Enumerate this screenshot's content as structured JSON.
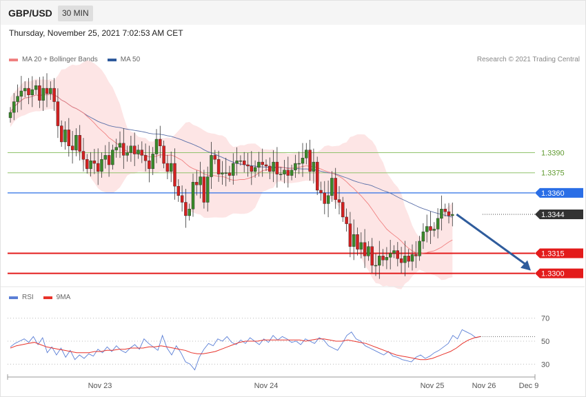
{
  "header": {
    "pair": "GBP/USD",
    "timeframe": "30 MIN",
    "datetime": "Thursday, November 25, 2021 7:02:53 AM CET",
    "copyright": "Research © 2021 Trading Central"
  },
  "legend_main": [
    {
      "label": "MA 20 + Bollinger Bands",
      "color": "#f08080"
    },
    {
      "label": "MA 50",
      "color": "#2e5a9c"
    }
  ],
  "legend_rsi": [
    {
      "label": "RSI",
      "color": "#5b7fd6"
    },
    {
      "label": "9MA",
      "color": "#e8322a"
    }
  ],
  "chart_data": {
    "type": "candlestick",
    "price_range": [
      1.3288,
      1.3455
    ],
    "levels": [
      {
        "value": 1.339,
        "label": "1.3390",
        "kind": "target",
        "color": "#8fc26a",
        "text_color": "#5f9a2f"
      },
      {
        "value": 1.3375,
        "label": "1.3375",
        "kind": "target",
        "color": "#8fc26a",
        "text_color": "#5f9a2f"
      },
      {
        "value": 1.336,
        "label": "1.3360",
        "kind": "pivot",
        "color": "#2a6ee6"
      },
      {
        "value": 1.3344,
        "label": "1.3344",
        "kind": "last",
        "color": "#333333"
      },
      {
        "value": 1.3315,
        "label": "1.3315",
        "kind": "support",
        "color": "#e31b1b"
      },
      {
        "value": 1.33,
        "label": "1.3300",
        "kind": "support",
        "color": "#e31b1b"
      }
    ],
    "closes": [
      1.342,
      1.3428,
      1.3432,
      1.3436,
      1.3438,
      1.3433,
      1.3437,
      1.344,
      1.3429,
      1.3438,
      1.3434,
      1.3438,
      1.3428,
      1.341,
      1.3398,
      1.3407,
      1.3395,
      1.3392,
      1.3403,
      1.3391,
      1.3385,
      1.3378,
      1.3384,
      1.3382,
      1.3376,
      1.3385,
      1.3388,
      1.3381,
      1.3392,
      1.3394,
      1.3397,
      1.3388,
      1.339,
      1.3395,
      1.3389,
      1.3392,
      1.3388,
      1.3384,
      1.3378,
      1.3389,
      1.34,
      1.3395,
      1.3382,
      1.3376,
      1.3382,
      1.3365,
      1.3358,
      1.3353,
      1.3343,
      1.3348,
      1.3368,
      1.3366,
      1.3372,
      1.3353,
      1.3372,
      1.3388,
      1.3385,
      1.3374,
      1.3375,
      1.3375,
      1.3373,
      1.3382,
      1.3384,
      1.3384,
      1.3381,
      1.338,
      1.3376,
      1.3379,
      1.3383,
      1.3381,
      1.338,
      1.3376,
      1.3383,
      1.3374,
      1.3374,
      1.3377,
      1.3373,
      1.3377,
      1.3382,
      1.3382,
      1.3386,
      1.3392,
      1.3376,
      1.3383,
      1.3362,
      1.336,
      1.3352,
      1.3358,
      1.3371,
      1.3355,
      1.3353,
      1.3342,
      1.3337,
      1.332,
      1.3329,
      1.3318,
      1.3323,
      1.3313,
      1.332,
      1.3306,
      1.3306,
      1.3313,
      1.331,
      1.3312,
      1.3315,
      1.3317,
      1.3311,
      1.3308,
      1.3313,
      1.3309,
      1.3314,
      1.3313,
      1.3324,
      1.3331,
      1.3335,
      1.3332,
      1.3333,
      1.3341,
      1.3348,
      1.3346,
      1.3343,
      1.3344
    ],
    "rsi": {
      "range": [
        20,
        80
      ],
      "levels": [
        70,
        50,
        30
      ],
      "rsi_values": [
        45,
        48,
        50,
        52,
        49,
        54,
        47,
        53,
        40,
        45,
        38,
        44,
        36,
        42,
        34,
        38,
        35,
        39,
        37,
        43,
        40,
        45,
        41,
        46,
        42,
        40,
        44,
        47,
        43,
        52,
        48,
        45,
        42,
        55,
        44,
        38,
        46,
        40,
        32,
        30,
        25,
        36,
        43,
        48,
        46,
        52,
        50,
        54,
        49,
        47,
        51,
        48,
        53,
        50,
        47,
        52,
        49,
        55,
        51,
        54,
        52,
        49,
        50,
        47,
        52,
        50,
        48,
        53,
        51,
        46,
        44,
        42,
        48,
        55,
        58,
        52,
        50,
        46,
        44,
        42,
        40,
        38,
        41,
        37,
        36,
        34,
        33,
        32,
        36,
        38,
        35,
        37,
        40,
        42,
        45,
        48,
        55,
        52,
        60,
        58,
        56,
        53,
        54
      ],
      "ma_values": [
        44,
        46,
        47,
        48,
        49,
        47,
        45,
        44,
        43,
        42,
        41,
        40,
        40,
        40,
        41,
        41,
        42,
        42,
        43,
        43,
        44,
        44,
        44,
        45,
        45,
        46,
        45,
        44,
        43,
        42,
        40,
        39,
        39,
        40,
        41,
        43,
        45,
        47,
        49,
        50,
        50,
        50,
        51,
        51,
        51,
        51,
        51,
        51,
        51,
        50,
        51,
        52,
        52,
        51,
        50,
        50,
        51,
        50,
        49,
        48,
        46,
        44,
        42,
        40,
        38,
        37,
        36,
        35,
        34,
        34,
        35,
        37,
        39,
        41,
        44,
        48,
        51,
        53,
        54
      ]
    },
    "x_ticks": [
      "Nov 23",
      "Nov 24",
      "Nov 25",
      "Nov 26",
      "Dec 9"
    ]
  }
}
